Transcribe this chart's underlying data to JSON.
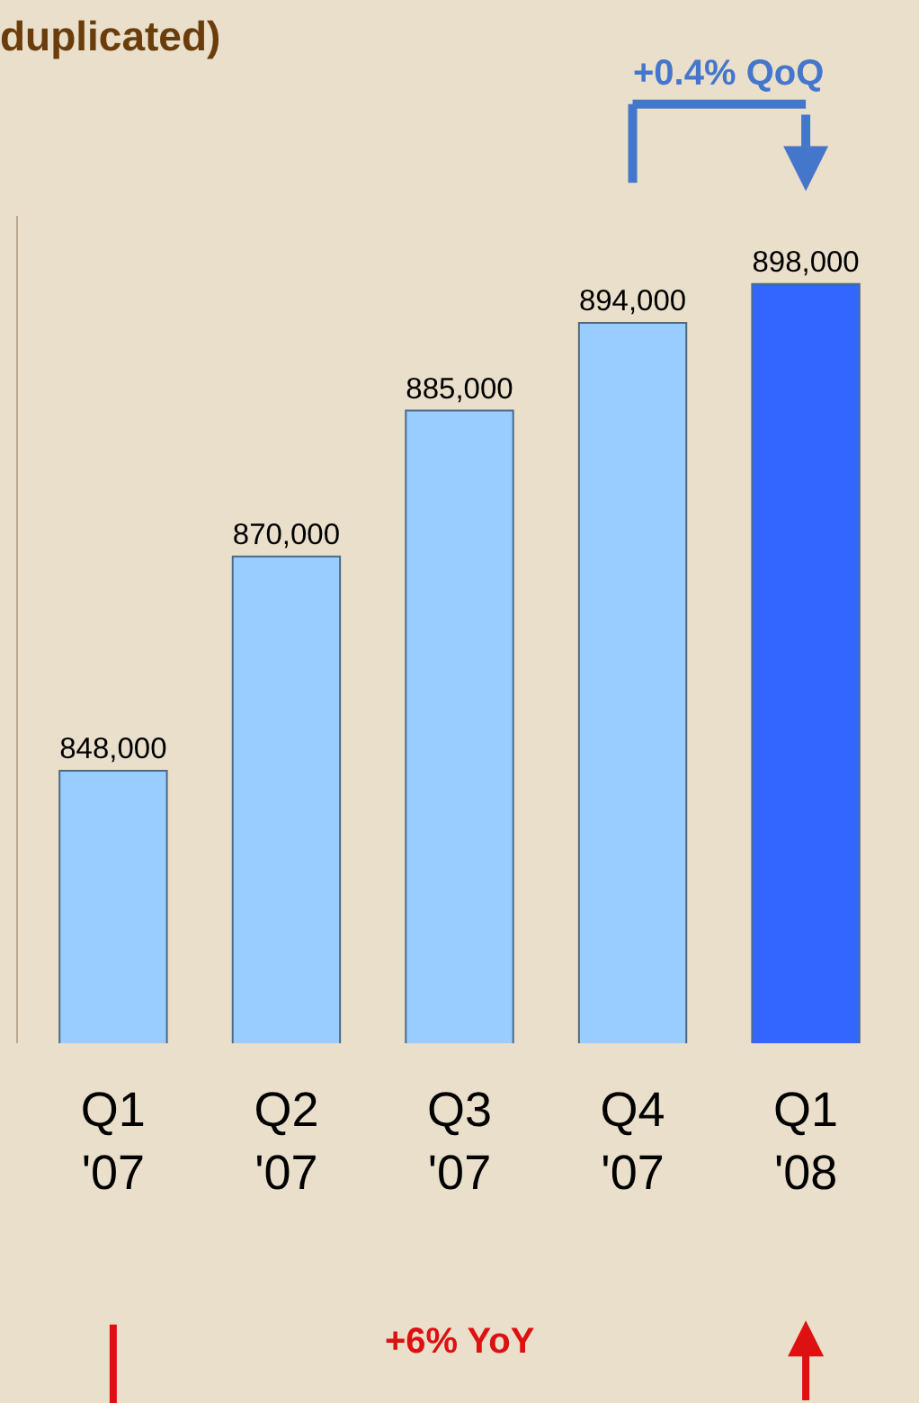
{
  "chart_data": {
    "type": "bar",
    "title": "duplicated)",
    "categories": [
      "Q1\n'07",
      "Q2\n'07",
      "Q3\n'07",
      "Q4\n'07",
      "Q1\n'08"
    ],
    "values": [
      848000,
      870000,
      885000,
      894000,
      898000
    ],
    "colors": [
      "#99ccff",
      "#99ccff",
      "#99ccff",
      "#99ccff",
      "#3366ff"
    ],
    "value_labels": [
      "848,000",
      "870,000",
      "885,000",
      "894,000",
      "898,000"
    ],
    "ylim": [
      820000,
      905000
    ],
    "tick_labels": "x",
    "grid": false,
    "legend": false,
    "annotations": [
      "+0.4% QoQ",
      "+6% YoY"
    ]
  }
}
